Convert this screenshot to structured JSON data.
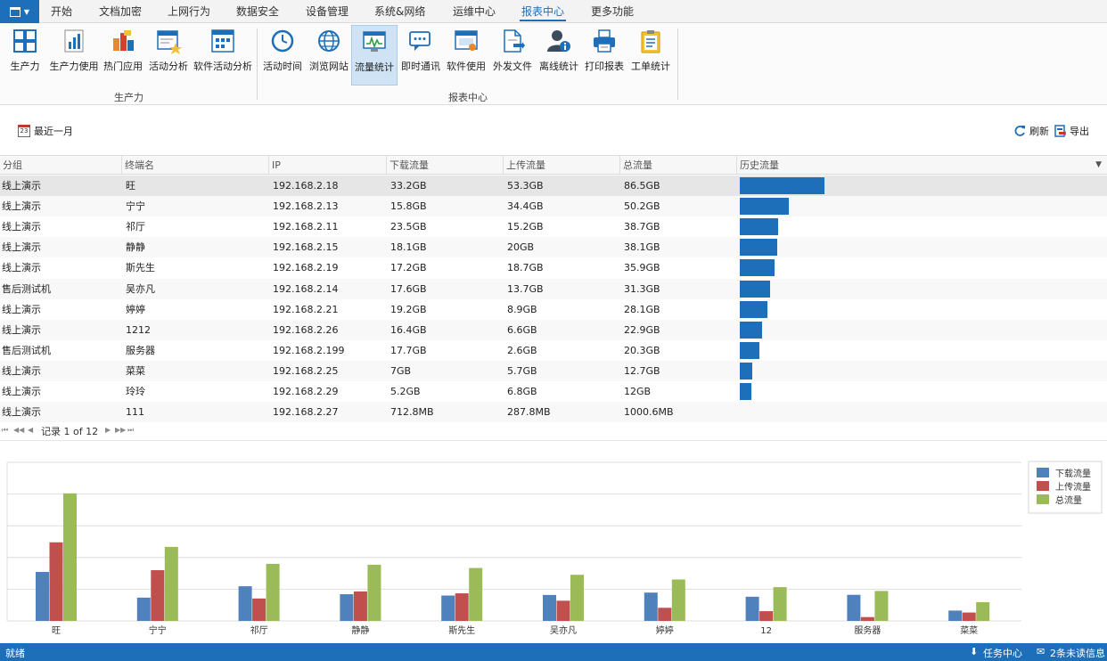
{
  "menubar": {
    "items": [
      "开始",
      "文档加密",
      "上网行为",
      "数据安全",
      "设备管理",
      "系统&网络",
      "运维中心",
      "报表中心",
      "更多功能"
    ],
    "active_index": 7
  },
  "ribbon": {
    "group1_label": "生产力",
    "group2_label": "报表中心",
    "group1": [
      {
        "label": "生产力",
        "icon": "grid-icon"
      },
      {
        "label": "生产力使用",
        "icon": "bar-chart-icon"
      },
      {
        "label": "热门应用",
        "icon": "apps-icon"
      },
      {
        "label": "活动分析",
        "icon": "star-report-icon"
      },
      {
        "label": "软件活动分析",
        "icon": "software-grid-icon"
      }
    ],
    "group2": [
      {
        "label": "活动时间",
        "icon": "clock-icon"
      },
      {
        "label": "浏览网站",
        "icon": "globe-icon"
      },
      {
        "label": "流量统计",
        "icon": "traffic-monitor-icon"
      },
      {
        "label": "即时通讯",
        "icon": "chat-icon"
      },
      {
        "label": "软件使用",
        "icon": "window-icon"
      },
      {
        "label": "外发文件",
        "icon": "file-send-icon"
      },
      {
        "label": "离线统计",
        "icon": "user-info-icon"
      },
      {
        "label": "打印报表",
        "icon": "printer-icon"
      },
      {
        "label": "工单统计",
        "icon": "clipboard-icon"
      }
    ],
    "selected": "流量统计"
  },
  "toolbar": {
    "period_label": "最近一月",
    "calendar_day": "23",
    "refresh_label": "刷新",
    "export_label": "导出"
  },
  "grid": {
    "columns": [
      "分组",
      "终端名",
      "IP",
      "下载流量",
      "上传流量",
      "总流量",
      "历史流量"
    ],
    "rows": [
      {
        "group": "线上演示",
        "name": "旺",
        "ip": "192.168.2.18",
        "download": "33.2GB",
        "upload": "53.3GB",
        "total": "86.5GB",
        "total_gb": 86.5
      },
      {
        "group": "线上演示",
        "name": "宁宁",
        "ip": "192.168.2.13",
        "download": "15.8GB",
        "upload": "34.4GB",
        "total": "50.2GB",
        "total_gb": 50.2
      },
      {
        "group": "线上演示",
        "name": "祁厅",
        "ip": "192.168.2.11",
        "download": "23.5GB",
        "upload": "15.2GB",
        "total": "38.7GB",
        "total_gb": 38.7
      },
      {
        "group": "线上演示",
        "name": "静静",
        "ip": "192.168.2.15",
        "download": "18.1GB",
        "upload": "20GB",
        "total": "38.1GB",
        "total_gb": 38.1
      },
      {
        "group": "线上演示",
        "name": "斯先生",
        "ip": "192.168.2.19",
        "download": "17.2GB",
        "upload": "18.7GB",
        "total": "35.9GB",
        "total_gb": 35.9
      },
      {
        "group": "售后测试机",
        "name": "吴亦凡",
        "ip": "192.168.2.14",
        "download": "17.6GB",
        "upload": "13.7GB",
        "total": "31.3GB",
        "total_gb": 31.3
      },
      {
        "group": "线上演示",
        "name": "婷婷",
        "ip": "192.168.2.21",
        "download": "19.2GB",
        "upload": "8.9GB",
        "total": "28.1GB",
        "total_gb": 28.1
      },
      {
        "group": "线上演示",
        "name": "1212",
        "ip": "192.168.2.26",
        "download": "16.4GB",
        "upload": "6.6GB",
        "total": "22.9GB",
        "total_gb": 22.9
      },
      {
        "group": "售后测试机",
        "name": "服务器",
        "ip": "192.168.2.199",
        "download": "17.7GB",
        "upload": "2.6GB",
        "total": "20.3GB",
        "total_gb": 20.3
      },
      {
        "group": "线上演示",
        "name": "菜菜",
        "ip": "192.168.2.25",
        "download": "7GB",
        "upload": "5.7GB",
        "total": "12.7GB",
        "total_gb": 12.7
      },
      {
        "group": "线上演示",
        "name": "玲玲",
        "ip": "192.168.2.29",
        "download": "5.2GB",
        "upload": "6.8GB",
        "total": "12GB",
        "total_gb": 12
      },
      {
        "group": "线上演示",
        "name": "111",
        "ip": "192.168.2.27",
        "download": "712.8MB",
        "upload": "287.8MB",
        "total": "1000.6MB",
        "total_gb": 1.0
      }
    ],
    "selected_index": 0
  },
  "pager": {
    "text": "记录 1 of 12"
  },
  "chart_data": {
    "type": "bar",
    "categories": [
      "旺",
      "宁宁",
      "祁厅",
      "静静",
      "斯先生",
      "吴亦凡",
      "婷婷",
      "1212",
      "服务器",
      "菜菜"
    ],
    "series": [
      {
        "name": "下载流量",
        "color": "#4f81bd",
        "values": [
          33.2,
          15.8,
          23.5,
          18.1,
          17.2,
          17.6,
          19.2,
          16.4,
          17.7,
          7
        ]
      },
      {
        "name": "上传流量",
        "color": "#c0504d",
        "values": [
          53.3,
          34.4,
          15.2,
          20,
          18.7,
          13.7,
          8.9,
          6.6,
          2.6,
          5.7
        ]
      },
      {
        "name": "总流量",
        "color": "#9bbb59",
        "values": [
          86.5,
          50.2,
          38.7,
          38.1,
          35.9,
          31.3,
          28.1,
          22.9,
          20.3,
          12.7
        ]
      }
    ],
    "ylim": [
      0,
      100
    ],
    "grid": true,
    "legend": "top-right",
    "visible_x_labels": [
      "旺",
      "宁宁",
      "祁厅",
      "静静",
      "斯先生",
      "吴亦凡",
      "婷婷",
      "12",
      "服务器",
      "菜菜"
    ]
  },
  "statusbar": {
    "status": "就绪",
    "task_center": "任务中心",
    "messages": "2条未读信息"
  },
  "colors": {
    "accent": "#1e6fba",
    "ribbon_selected": "#cfe3f5",
    "row_selected": "#e6e6e6"
  }
}
